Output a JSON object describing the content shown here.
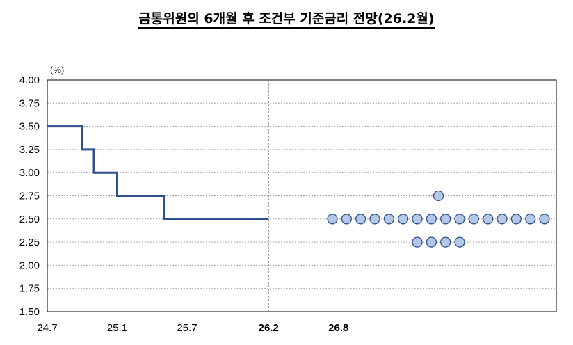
{
  "chart_data": {
    "type": "line",
    "title": "금통위원의 6개월 후 조건부 기준금리 전망(26.2월)",
    "unit_label": "(%)",
    "ylim": [
      1.5,
      4.0
    ],
    "yticks": [
      "4.00",
      "3.75",
      "3.50",
      "3.25",
      "3.00",
      "2.75",
      "2.50",
      "2.25",
      "2.00",
      "1.75",
      "1.50"
    ],
    "xticks": [
      "24.7",
      "25.1",
      "25.7",
      "26.2",
      "26.8"
    ],
    "bold_xticks": [
      "26.2",
      "26.8"
    ],
    "grid": true,
    "reference_line_x": "26.2",
    "colors": {
      "line": "#2f4f8f",
      "dot_fill": "#b4c7e7",
      "dot_stroke": "#2f4f8f",
      "grid": "#a6a6a6"
    },
    "base_rate_path": [
      {
        "from": "24.7",
        "to": "24.10",
        "value": 3.5
      },
      {
        "from": "24.10",
        "to": "24.11",
        "value": 3.25
      },
      {
        "from": "24.11",
        "to": "25.1",
        "value": 3.0
      },
      {
        "from": "25.1",
        "to": "25.5",
        "value": 2.75
      },
      {
        "from": "25.5",
        "to": "26.2",
        "value": 2.5
      }
    ],
    "projection_dots": [
      {
        "rate": 2.75,
        "count": 1
      },
      {
        "rate": 2.5,
        "count": 16
      },
      {
        "rate": 2.25,
        "count": 4
      }
    ]
  }
}
